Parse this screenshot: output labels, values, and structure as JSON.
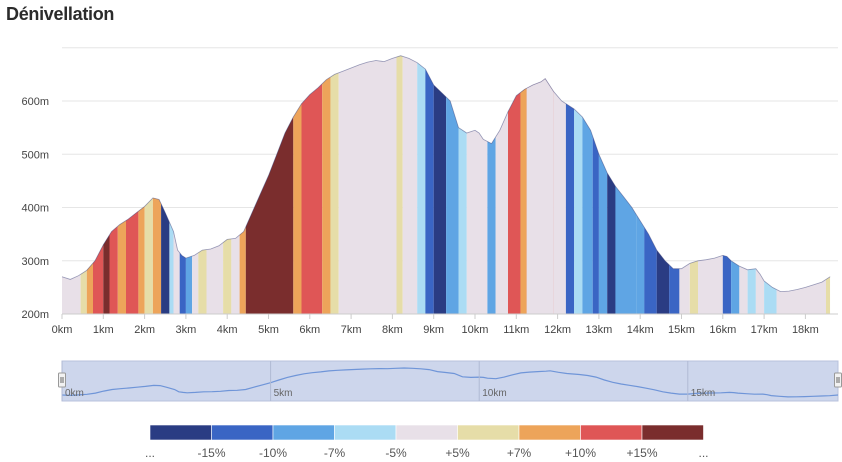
{
  "title": "Dénivellation",
  "chart_data": {
    "type": "area",
    "title": "Dénivellation",
    "xlabel": "",
    "ylabel": "",
    "xlim": [
      0,
      18.6
    ],
    "ylim": [
      200,
      700
    ],
    "x_ticks": [
      "0km",
      "1km",
      "2km",
      "3km",
      "4km",
      "5km",
      "6km",
      "7km",
      "8km",
      "9km",
      "10km",
      "11km",
      "12km",
      "13km",
      "14km",
      "15km",
      "16km",
      "17km",
      "18km"
    ],
    "y_ticks": [
      "200m",
      "300m",
      "400m",
      "500m",
      "600m"
    ],
    "grid": true,
    "profile": [
      [
        0,
        270
      ],
      [
        0.2,
        265
      ],
      [
        0.4,
        272
      ],
      [
        0.6,
        282
      ],
      [
        0.8,
        300
      ],
      [
        1.0,
        330
      ],
      [
        1.2,
        355
      ],
      [
        1.4,
        368
      ],
      [
        1.6,
        378
      ],
      [
        1.8,
        390
      ],
      [
        2.0,
        402
      ],
      [
        2.2,
        418
      ],
      [
        2.35,
        415
      ],
      [
        2.5,
        390
      ],
      [
        2.7,
        355
      ],
      [
        2.8,
        320
      ],
      [
        2.9,
        310
      ],
      [
        3.0,
        305
      ],
      [
        3.2,
        310
      ],
      [
        3.4,
        320
      ],
      [
        3.6,
        322
      ],
      [
        3.8,
        328
      ],
      [
        4.0,
        340
      ],
      [
        4.2,
        342
      ],
      [
        4.4,
        355
      ],
      [
        4.6,
        390
      ],
      [
        4.8,
        425
      ],
      [
        5.0,
        460
      ],
      [
        5.2,
        500
      ],
      [
        5.4,
        540
      ],
      [
        5.6,
        570
      ],
      [
        5.8,
        595
      ],
      [
        6.0,
        612
      ],
      [
        6.2,
        625
      ],
      [
        6.4,
        640
      ],
      [
        6.6,
        650
      ],
      [
        6.8,
        656
      ],
      [
        7.0,
        662
      ],
      [
        7.2,
        668
      ],
      [
        7.4,
        673
      ],
      [
        7.6,
        676
      ],
      [
        7.8,
        674
      ],
      [
        8.0,
        680
      ],
      [
        8.2,
        685
      ],
      [
        8.4,
        680
      ],
      [
        8.6,
        672
      ],
      [
        8.8,
        660
      ],
      [
        9.0,
        630
      ],
      [
        9.2,
        615
      ],
      [
        9.4,
        600
      ],
      [
        9.6,
        550
      ],
      [
        9.8,
        540
      ],
      [
        10.0,
        545
      ],
      [
        10.1,
        540
      ],
      [
        10.2,
        528
      ],
      [
        10.4,
        520
      ],
      [
        10.6,
        545
      ],
      [
        10.8,
        580
      ],
      [
        11.0,
        610
      ],
      [
        11.2,
        622
      ],
      [
        11.4,
        630
      ],
      [
        11.6,
        636
      ],
      [
        11.7,
        642
      ],
      [
        11.9,
        618
      ],
      [
        12.1,
        600
      ],
      [
        12.4,
        585
      ],
      [
        12.6,
        570
      ],
      [
        12.8,
        545
      ],
      [
        13.0,
        500
      ],
      [
        13.2,
        465
      ],
      [
        13.4,
        440
      ],
      [
        13.6,
        420
      ],
      [
        13.8,
        400
      ],
      [
        14.0,
        375
      ],
      [
        14.2,
        350
      ],
      [
        14.4,
        320
      ],
      [
        14.6,
        300
      ],
      [
        14.8,
        285
      ],
      [
        15.0,
        285
      ],
      [
        15.2,
        295
      ],
      [
        15.4,
        300
      ],
      [
        15.6,
        302
      ],
      [
        15.8,
        305
      ],
      [
        16.0,
        310
      ],
      [
        16.1,
        308
      ],
      [
        16.2,
        300
      ],
      [
        16.4,
        290
      ],
      [
        16.6,
        283
      ],
      [
        16.8,
        285
      ],
      [
        16.9,
        275
      ],
      [
        17.0,
        262
      ],
      [
        17.2,
        250
      ],
      [
        17.4,
        242
      ],
      [
        17.6,
        243
      ],
      [
        17.8,
        246
      ],
      [
        18.0,
        250
      ],
      [
        18.2,
        255
      ],
      [
        18.4,
        260
      ],
      [
        18.6,
        270
      ]
    ],
    "grade_bands": [
      [
        0.0,
        0.45,
        4
      ],
      [
        0.45,
        0.6,
        5
      ],
      [
        0.6,
        0.75,
        6
      ],
      [
        0.75,
        1.0,
        7
      ],
      [
        1.0,
        1.15,
        8
      ],
      [
        1.15,
        1.35,
        7
      ],
      [
        1.35,
        1.55,
        6
      ],
      [
        1.55,
        1.85,
        7
      ],
      [
        1.85,
        2.0,
        6
      ],
      [
        2.0,
        2.2,
        5
      ],
      [
        2.2,
        2.4,
        6
      ],
      [
        2.4,
        2.6,
        0
      ],
      [
        2.6,
        2.7,
        3
      ],
      [
        2.7,
        2.85,
        4
      ],
      [
        2.85,
        3.0,
        1
      ],
      [
        3.0,
        3.15,
        2
      ],
      [
        3.15,
        3.3,
        4
      ],
      [
        3.3,
        3.5,
        5
      ],
      [
        3.5,
        3.9,
        4
      ],
      [
        3.9,
        4.1,
        5
      ],
      [
        4.1,
        4.3,
        4
      ],
      [
        4.3,
        4.45,
        6
      ],
      [
        4.45,
        5.0,
        8
      ],
      [
        5.0,
        5.6,
        8
      ],
      [
        5.6,
        5.8,
        6
      ],
      [
        5.8,
        6.3,
        7
      ],
      [
        6.3,
        6.5,
        6
      ],
      [
        6.5,
        6.7,
        5
      ],
      [
        6.7,
        8.1,
        4
      ],
      [
        8.1,
        8.25,
        5
      ],
      [
        8.25,
        8.6,
        4
      ],
      [
        8.6,
        8.8,
        3
      ],
      [
        8.8,
        9.0,
        1
      ],
      [
        9.0,
        9.3,
        0
      ],
      [
        9.3,
        9.6,
        2
      ],
      [
        9.6,
        9.8,
        3
      ],
      [
        9.8,
        10.3,
        4
      ],
      [
        10.3,
        10.5,
        2
      ],
      [
        10.5,
        10.8,
        4
      ],
      [
        10.8,
        11.9,
        7
      ],
      [
        11.1,
        11.25,
        6
      ],
      [
        11.25,
        11.9,
        4
      ],
      [
        11.9,
        12.2,
        4
      ],
      [
        12.2,
        12.4,
        1
      ],
      [
        12.4,
        12.6,
        3
      ],
      [
        12.6,
        12.85,
        2
      ],
      [
        12.85,
        13.0,
        1
      ],
      [
        13.0,
        13.2,
        2
      ],
      [
        13.2,
        13.4,
        0
      ],
      [
        13.4,
        13.9,
        2
      ],
      [
        13.9,
        14.1,
        2
      ],
      [
        14.1,
        14.4,
        1
      ],
      [
        14.4,
        14.7,
        0
      ],
      [
        14.7,
        14.95,
        1
      ],
      [
        14.95,
        15.2,
        4
      ],
      [
        15.2,
        15.4,
        5
      ],
      [
        15.4,
        16.0,
        4
      ],
      [
        16.0,
        16.2,
        1
      ],
      [
        16.2,
        16.4,
        2
      ],
      [
        16.4,
        16.6,
        4
      ],
      [
        16.6,
        16.8,
        3
      ],
      [
        16.8,
        17.0,
        4
      ],
      [
        17.0,
        17.3,
        3
      ],
      [
        17.3,
        18.5,
        4
      ],
      [
        18.5,
        18.6,
        5
      ]
    ],
    "navigator_ticks": [
      "0km",
      "5km",
      "10km",
      "15km"
    ],
    "legend": {
      "colors": [
        "#2a3c83",
        "#3a65c4",
        "#5fa5e4",
        "#abdcf4",
        "#e8e0e8",
        "#e6dda8",
        "#eda45a",
        "#df5656",
        "#7a2d2d"
      ],
      "labels": [
        "...",
        "-15%",
        "-10%",
        "-7%",
        "-5%",
        "+5%",
        "+7%",
        "+10%",
        "+15%",
        "..."
      ]
    }
  }
}
